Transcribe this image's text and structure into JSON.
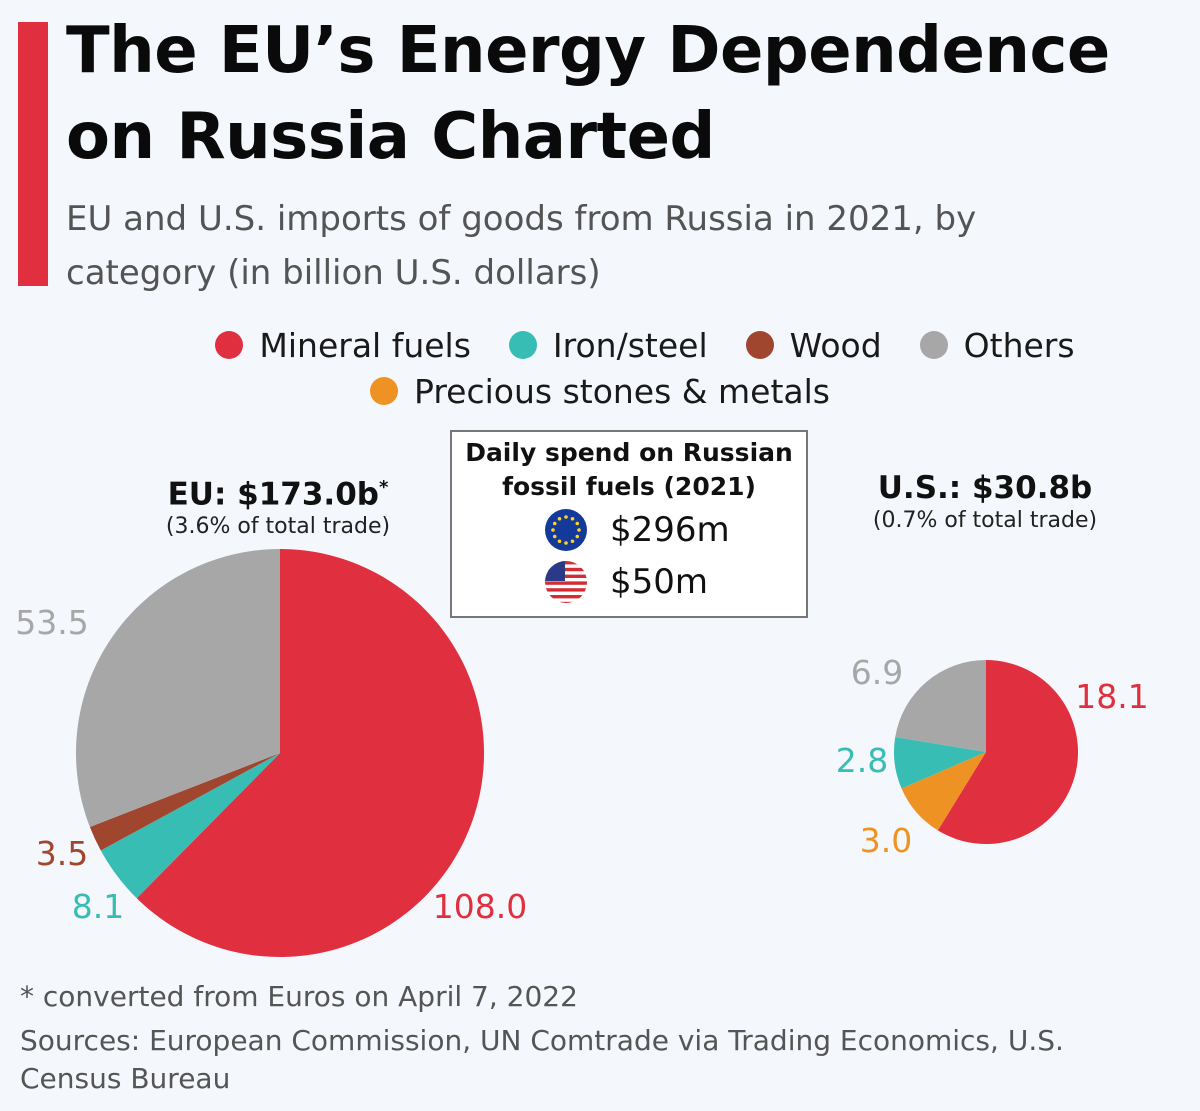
{
  "header": {
    "title": "The EU’s Energy Dependence on Russia Charted",
    "subtitle": "EU and U.S. imports of goods from Russia in 2021, by category (in billion U.S. dollars)"
  },
  "colors": {
    "accent": "#e0303f",
    "Mineral fuels": "#e0303f",
    "Iron/steel": "#38bdb5",
    "Wood": "#a0462e",
    "Others": "#a7a7a7",
    "Precious stones & metals": "#ef9224"
  },
  "legend": {
    "items": [
      {
        "label": "Mineral fuels",
        "color": "#e0303f"
      },
      {
        "label": "Iron/steel",
        "color": "#38bdb5"
      },
      {
        "label": "Wood",
        "color": "#a0462e"
      },
      {
        "label": "Others",
        "color": "#a7a7a7"
      },
      {
        "label": "Precious stones & metals",
        "color": "#ef9224"
      }
    ]
  },
  "infobox": {
    "title": "Daily spend on Russian fossil fuels (2021)",
    "rows": [
      {
        "icon": "eu-flag-icon",
        "value": "$296m"
      },
      {
        "icon": "us-flag-icon",
        "value": "$50m"
      }
    ]
  },
  "chart_data": [
    {
      "type": "pie",
      "title": "EU: $173.0b",
      "title_mark": "*",
      "subtitle": "(3.6% of total trade)",
      "slices": [
        {
          "label": "Mineral fuels",
          "value": 108.0,
          "value_label": "108.0",
          "color": "#e0303f"
        },
        {
          "label": "Iron/steel",
          "value": 8.1,
          "value_label": "8.1",
          "color": "#38bdb5"
        },
        {
          "label": "Wood",
          "value": 3.5,
          "value_label": "3.5",
          "color": "#a0462e"
        },
        {
          "label": "Others",
          "value": 53.5,
          "value_label": "53.5",
          "color": "#a7a7a7"
        }
      ]
    },
    {
      "type": "pie",
      "title": "U.S.: $30.8b",
      "subtitle": "(0.7% of total trade)",
      "slices": [
        {
          "label": "Mineral fuels",
          "value": 18.1,
          "value_label": "18.1",
          "color": "#e0303f"
        },
        {
          "label": "Precious stones & metals",
          "value": 3.0,
          "value_label": "3.0",
          "color": "#ef9224"
        },
        {
          "label": "Iron/steel",
          "value": 2.8,
          "value_label": "2.8",
          "color": "#38bdb5"
        },
        {
          "label": "Others",
          "value": 6.9,
          "value_label": "6.9",
          "color": "#a7a7a7"
        }
      ]
    }
  ],
  "footer": {
    "footnote": "* converted from Euros on April 7, 2022",
    "sources": "Sources: European Commission, UN Comtrade via Trading Economics, U.S. Census Bureau"
  }
}
